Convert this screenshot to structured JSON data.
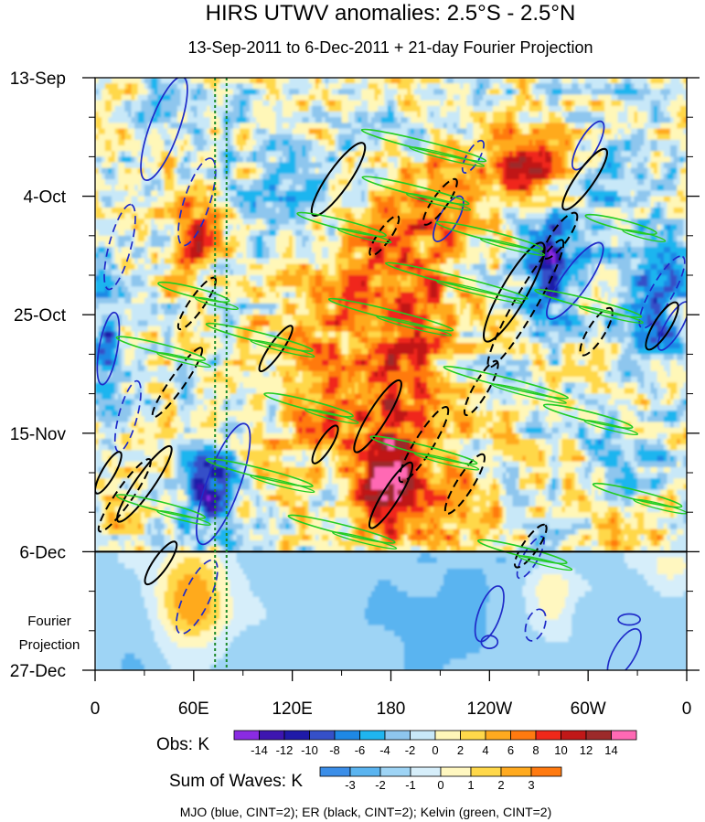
{
  "chart_data": {
    "type": "heatmap",
    "title": "HIRS UTWV anomalies: 2.5°S - 2.5°N",
    "subtitle": "13-Sep-2011 to 6-Dec-2011 + 21-day Fourier Projection",
    "y_tick_labels": [
      "13-Sep",
      "4-Oct",
      "25-Oct",
      "15-Nov",
      "6-Dec",
      "27-Dec"
    ],
    "y_days": [
      0,
      21,
      42,
      63,
      84,
      105
    ],
    "x_tick_labels": [
      "0",
      "60E",
      "120E",
      "180",
      "120W",
      "60W",
      "0"
    ],
    "x_lon": [
      0,
      60,
      120,
      180,
      240,
      300,
      360
    ],
    "projection_label_line1": "Fourier",
    "projection_label_line2": "Projection",
    "observation_end_day": 84,
    "reference_longitudes": [
      73,
      80
    ],
    "obs_colorbar": {
      "title": "Obs: K",
      "levels": [
        "-14",
        "-12",
        "-10",
        "-8",
        "-6",
        "-4",
        "-2",
        "0",
        "2",
        "4",
        "6",
        "8",
        "10",
        "12",
        "14"
      ],
      "colors": [
        "#8a2be2",
        "#3d16b0",
        "#1f1aa8",
        "#3550c8",
        "#1e88e5",
        "#1fb5ef",
        "#8ec6ee",
        "#c8e8f8",
        "#fff7b8",
        "#ffd84a",
        "#ffaa1f",
        "#ff7a10",
        "#f0281a",
        "#c01818",
        "#9c2a2a",
        "#ff69b4"
      ]
    },
    "waves_colorbar": {
      "title": "Sum of Waves: K",
      "levels": [
        "-3",
        "-2",
        "-1",
        "0",
        "1",
        "2",
        "3"
      ],
      "colors": [
        "#3b8ee8",
        "#5ab4f0",
        "#9ed4f5",
        "#d6eefa",
        "#fff7c0",
        "#ffd84a",
        "#ffaa1f",
        "#ff7a10"
      ]
    },
    "contour_note": "MJO (blue, CINT=2); ER (black, CINT=2); Kelvin (green, CINT=2)",
    "series_colors": {
      "MJO": "#1f2bc8",
      "ER": "#000000",
      "Kelvin": "#22cc22"
    }
  }
}
